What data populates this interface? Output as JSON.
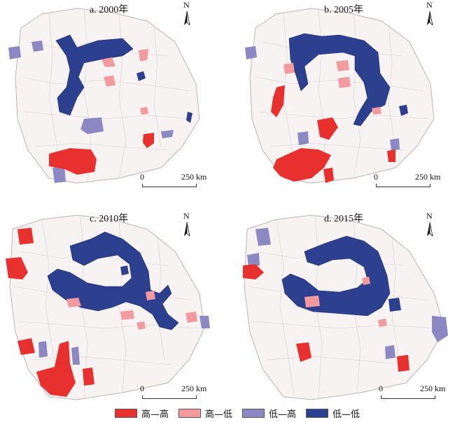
{
  "colors": {
    "hh": "#e8312f",
    "hl": "#f29a9e",
    "lh": "#8c88c4",
    "ll": "#2d3f8f",
    "base": "#f7f3f3",
    "border": "#bdb4b4"
  },
  "icons": {
    "north": "north-arrow-icon"
  },
  "panels": [
    {
      "title": "a. 2000年",
      "north_label": "N",
      "scale_zero": "0",
      "scale_dist": "250 km"
    },
    {
      "title": "b. 2005年",
      "north_label": "N",
      "scale_zero": "0",
      "scale_dist": "250 km"
    },
    {
      "title": "c. 2010年",
      "north_label": "N",
      "scale_zero": "0",
      "scale_dist": "250 km"
    },
    {
      "title": "d. 2015年",
      "north_label": "N",
      "scale_zero": "0",
      "scale_dist": "250 km"
    }
  ],
  "legend": [
    {
      "label": "高—高",
      "color": "#e8312f"
    },
    {
      "label": "高—低",
      "color": "#f29a9e"
    },
    {
      "label": "低—高",
      "color": "#8c88c4"
    },
    {
      "label": "低—低",
      "color": "#2d3f8f"
    }
  ]
}
